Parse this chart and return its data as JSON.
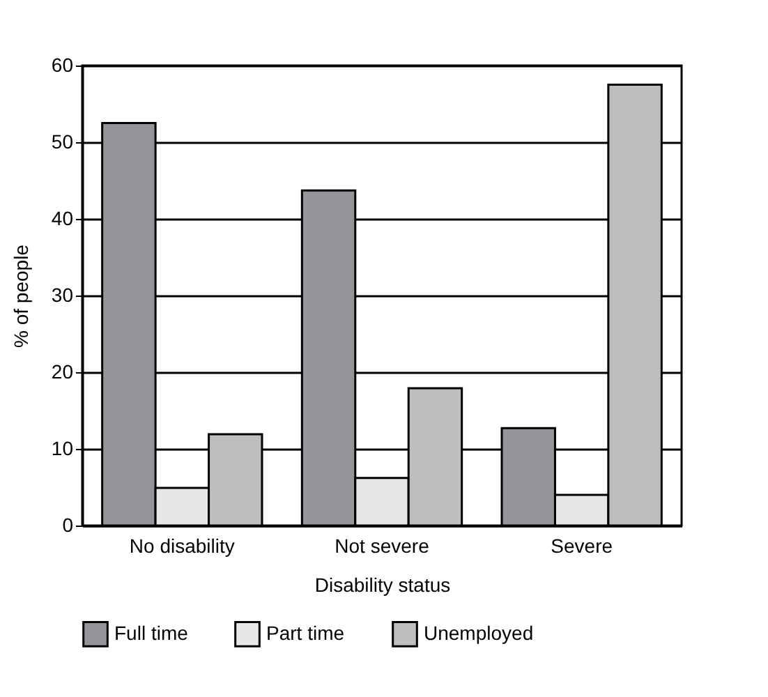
{
  "chart_data": {
    "type": "bar",
    "xlabel": "Disability status",
    "ylabel": "% of people",
    "categories": [
      "No disability",
      "Not severe",
      "Severe"
    ],
    "series": [
      {
        "name": "Full time",
        "color": "#939598",
        "values": [
          52.5,
          43.7,
          12.7
        ]
      },
      {
        "name": "Part time",
        "color": "#e6e7e8",
        "values": [
          4.9,
          6.2,
          4.0
        ]
      },
      {
        "name": "Unemployed",
        "color": "#bcbec0",
        "values": [
          11.9,
          17.9,
          57.5
        ]
      }
    ],
    "ylim": [
      0,
      60
    ],
    "yticks": [
      0,
      10,
      20,
      30,
      40,
      50,
      60
    ],
    "grid": "y",
    "legend": "bottom"
  }
}
